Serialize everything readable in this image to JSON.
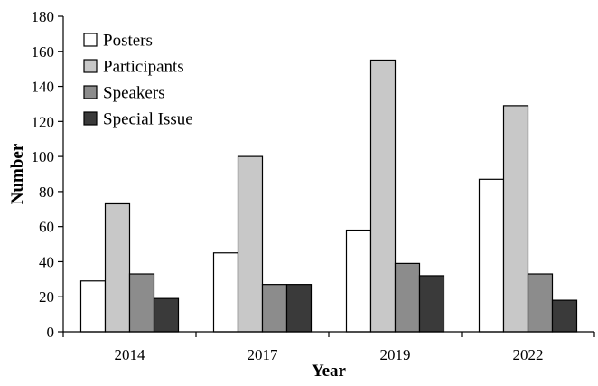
{
  "chart_data": {
    "type": "bar",
    "title": "",
    "xlabel": "Year",
    "ylabel": "Number",
    "categories": [
      "2014",
      "2017",
      "2019",
      "2022"
    ],
    "ylim": [
      0,
      180
    ],
    "yticks": [
      0,
      20,
      40,
      60,
      80,
      100,
      120,
      140,
      160,
      180
    ],
    "grid": false,
    "legend_position": "top-left",
    "series": [
      {
        "name": "Posters",
        "color": "#ffffff",
        "values": [
          29,
          45,
          58,
          87
        ]
      },
      {
        "name": "Participants",
        "color": "#c8c8c8",
        "values": [
          73,
          100,
          155,
          129
        ]
      },
      {
        "name": "Speakers",
        "color": "#8c8c8c",
        "values": [
          33,
          27,
          39,
          33
        ]
      },
      {
        "name": "Special Issue",
        "color": "#3a3a3a",
        "values": [
          19,
          27,
          32,
          18
        ]
      }
    ]
  }
}
